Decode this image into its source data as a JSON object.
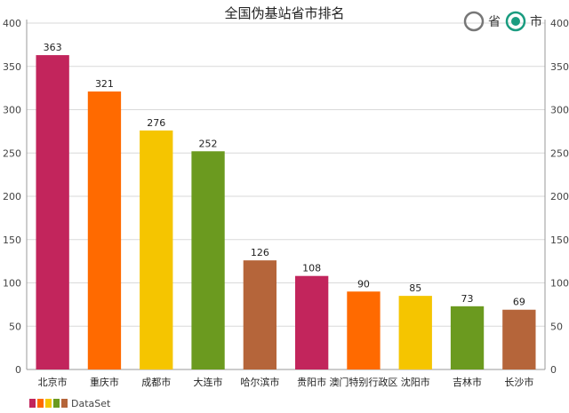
{
  "chart_data": {
    "type": "bar",
    "title": "全国伪基站省市排名",
    "categories": [
      "北京市",
      "重庆市",
      "成都市",
      "大连市",
      "哈尔滨市",
      "贵阳市",
      "澳门特别行政区",
      "沈阳市",
      "吉林市",
      "长沙市"
    ],
    "values": [
      363,
      321,
      276,
      252,
      126,
      108,
      90,
      85,
      73,
      69
    ],
    "series": [
      {
        "name": "DataSet",
        "values": [
          363,
          321,
          276,
          252,
          126,
          108,
          90,
          85,
          73,
          69
        ]
      }
    ],
    "colors": [
      "#c2255c",
      "#ff6a00",
      "#f5c500",
      "#6b9a1f",
      "#b5653a"
    ],
    "ylim": [
      0,
      400
    ],
    "yticks": [
      0,
      50,
      100,
      150,
      200,
      250,
      300,
      350,
      400
    ],
    "grid": true,
    "legend": "bottom-left",
    "xlabel": "",
    "ylabel": ""
  },
  "toggle": {
    "options": [
      {
        "label": "省",
        "selected": false
      },
      {
        "label": "市",
        "selected": true
      }
    ],
    "accent": "#1a9c80"
  }
}
